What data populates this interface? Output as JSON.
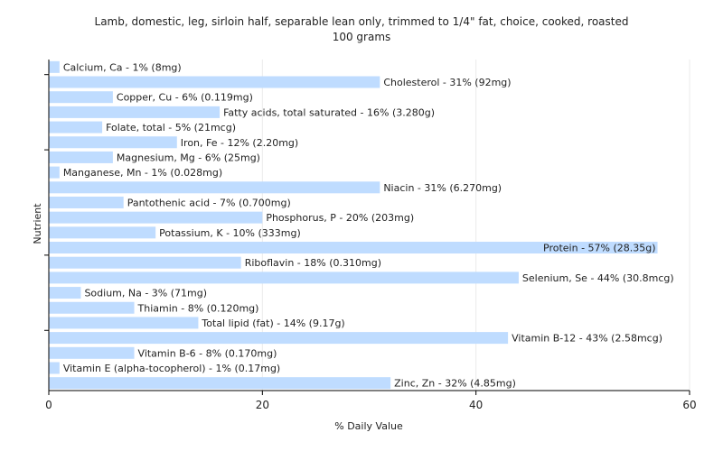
{
  "chart_data": {
    "type": "bar",
    "orientation": "horizontal",
    "title": "Lamb, domestic, leg, sirloin half, separable lean only, trimmed to 1/4\" fat, choice, cooked, roasted",
    "subtitle": "100 grams",
    "xlabel": "% Daily Value",
    "ylabel": "Nutrient",
    "xlim": [
      0,
      60
    ],
    "xticks": [
      "0",
      "20",
      "40",
      "60"
    ],
    "grid": true,
    "bar_color": "#bfdcff",
    "categories": [
      "Calcium, Ca",
      "Cholesterol",
      "Copper, Cu",
      "Fatty acids, total saturated",
      "Folate, total",
      "Iron, Fe",
      "Magnesium, Mg",
      "Manganese, Mn",
      "Niacin",
      "Pantothenic acid",
      "Phosphorus, P",
      "Potassium, K",
      "Protein",
      "Riboflavin",
      "Selenium, Se",
      "Sodium, Na",
      "Thiamin",
      "Total lipid (fat)",
      "Vitamin B-12",
      "Vitamin B-6",
      "Vitamin E (alpha-tocopherol)",
      "Zinc, Zn"
    ],
    "values": [
      1,
      31,
      6,
      16,
      5,
      12,
      6,
      1,
      31,
      7,
      20,
      10,
      57,
      18,
      44,
      3,
      8,
      14,
      43,
      8,
      1,
      32
    ],
    "labels": [
      "Calcium, Ca - 1% (8mg)",
      "Cholesterol - 31% (92mg)",
      "Copper, Cu - 6% (0.119mg)",
      "Fatty acids, total saturated - 16% (3.280g)",
      "Folate, total - 5% (21mcg)",
      "Iron, Fe - 12% (2.20mg)",
      "Magnesium, Mg - 6% (25mg)",
      "Manganese, Mn - 1% (0.028mg)",
      "Niacin - 31% (6.270mg)",
      "Pantothenic acid - 7% (0.700mg)",
      "Phosphorus, P - 20% (203mg)",
      "Potassium, K - 10% (333mg)",
      "Protein - 57% (28.35g)",
      "Riboflavin - 18% (0.310mg)",
      "Selenium, Se - 44% (30.8mcg)",
      "Sodium, Na - 3% (71mg)",
      "Thiamin - 8% (0.120mg)",
      "Total lipid (fat) - 14% (9.17g)",
      "Vitamin B-12 - 43% (2.58mcg)",
      "Vitamin B-6 - 8% (0.170mg)",
      "Vitamin E (alpha-tocopherol) - 1% (0.17mg)",
      "Zinc, Zn - 32% (4.85mg)"
    ]
  }
}
